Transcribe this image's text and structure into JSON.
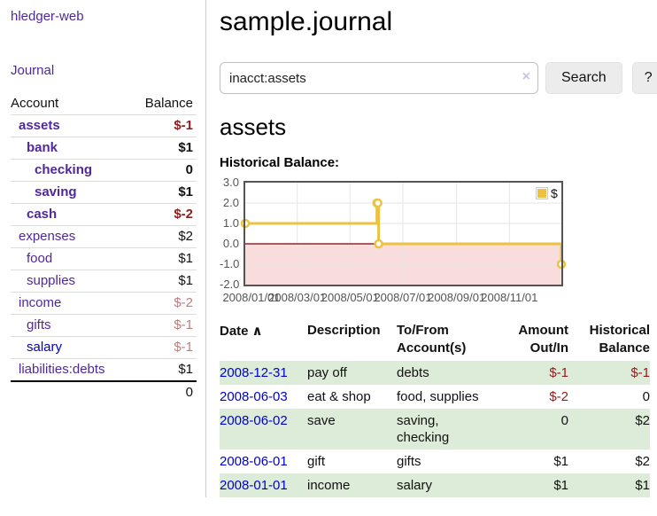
{
  "brand": "hledger-web",
  "sidebar": {
    "journal_link": "Journal",
    "accounts": {
      "header": {
        "account": "Account",
        "balance": "Balance"
      },
      "rows": [
        {
          "name": "assets",
          "balance": "$-1"
        },
        {
          "name": "bank",
          "balance": "$1"
        },
        {
          "name": "checking",
          "balance": "0"
        },
        {
          "name": "saving",
          "balance": "$1"
        },
        {
          "name": "cash",
          "balance": "$-2"
        },
        {
          "name": "expenses",
          "balance": "$2"
        },
        {
          "name": "food",
          "balance": "$1"
        },
        {
          "name": "supplies",
          "balance": "$1"
        },
        {
          "name": "income",
          "balance": "$-2"
        },
        {
          "name": "gifts",
          "balance": "$-1"
        },
        {
          "name": "salary",
          "balance": "$-1"
        },
        {
          "name": "liabilities:debts",
          "balance": "$1"
        }
      ],
      "total": "0"
    }
  },
  "main": {
    "title": "sample.journal",
    "search": {
      "value": "inacct:assets",
      "clear_icon": "×",
      "search_button": "Search",
      "help_button": "?"
    },
    "account_heading": "assets",
    "chart_heading": "Historical Balance:"
  },
  "chart_data": {
    "type": "line",
    "step": true,
    "title": "Historical Balance:",
    "x": [
      "2008-01-01",
      "2008-06-01",
      "2008-06-02",
      "2008-06-03",
      "2008-12-31"
    ],
    "series": [
      {
        "name": "$",
        "color": "#edc240",
        "values": [
          1,
          2,
          2,
          0,
          -1
        ]
      }
    ],
    "xlim": [
      "2008-01-01",
      "2008-12-31"
    ],
    "ylim": [
      -2,
      3
    ],
    "x_ticks": [
      {
        "t": "2008-01-01",
        "label": "2008/01/01"
      },
      {
        "t": "2008-03-01",
        "label": "2008/03/01"
      },
      {
        "t": "2008-05-01",
        "label": "2008/05/01"
      },
      {
        "t": "2008-07-01",
        "label": "2008/07/01"
      },
      {
        "t": "2008-09-01",
        "label": "2008/09/01"
      },
      {
        "t": "2008-11-01",
        "label": "2008/11/01"
      }
    ],
    "y_ticks": [
      {
        "v": 3,
        "label": "3.0"
      },
      {
        "v": 2,
        "label": "2.0"
      },
      {
        "v": 1,
        "label": "1.0"
      },
      {
        "v": 0,
        "label": "0.0"
      },
      {
        "v": -1,
        "label": "-1.0"
      },
      {
        "v": -2,
        "label": "-2.0"
      }
    ],
    "legend": {
      "label": "$",
      "position": "top-right"
    },
    "grid": {
      "border_color": "#545454",
      "line_color": "#e6e6e6",
      "zero_line_color": "#7f0000",
      "negative_fill": "#f9dcdc"
    }
  },
  "register": {
    "sort_icon": "∧",
    "headers": {
      "date": "Date",
      "description": "Description",
      "accounts": "To/From\nAccount(s)",
      "amount": "Amount\nOut/In",
      "balance": "Historical\nBalance"
    },
    "rows": [
      {
        "date": "2008-12-31",
        "description": "pay off",
        "accounts": "debts",
        "amount": "$-1",
        "balance": "$-1"
      },
      {
        "date": "2008-06-03",
        "description": "eat & shop",
        "accounts": "food, supplies",
        "amount": "$-2",
        "balance": "0"
      },
      {
        "date": "2008-06-02",
        "description": "save",
        "accounts": "saving,\nchecking",
        "amount": "0",
        "balance": "$2"
      },
      {
        "date": "2008-06-01",
        "description": "gift",
        "accounts": "gifts",
        "amount": "$1",
        "balance": "$2"
      },
      {
        "date": "2008-01-01",
        "description": "income",
        "accounts": "salary",
        "amount": "$1",
        "balance": "$1"
      }
    ]
  },
  "colors": {
    "link_purple": "#50289c",
    "link_blue": "#0000cc",
    "negative_strong": "#8f1d1d",
    "negative_muted": "#bd7d7d",
    "row_stripe_green": "#ddecd9",
    "series_gold": "#edc240",
    "chart_negative_region": "#f9dcdc",
    "chart_zero_line": "#7f0000",
    "chart_border": "#545454"
  }
}
